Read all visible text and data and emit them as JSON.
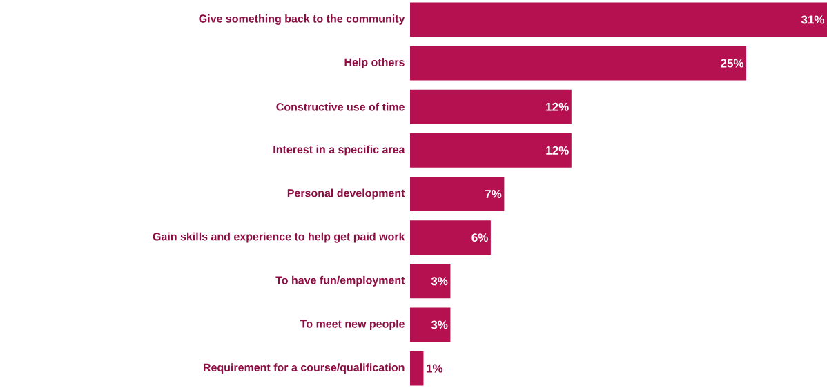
{
  "chart_data": {
    "type": "bar",
    "orientation": "horizontal",
    "categories": [
      "Give something back to the community",
      "Help others",
      "Constructive use of time",
      "Interest in a specific area",
      "Personal development",
      "Gain skills and experience to help get paid work",
      "To have fun/employment",
      "To meet new people",
      "Requirement for a course/qualification"
    ],
    "values": [
      31,
      25,
      12,
      12,
      7,
      6,
      3,
      3,
      1
    ],
    "value_labels": [
      "31%",
      "25%",
      "12%",
      "12%",
      "7%",
      "6%",
      "3%",
      "3%",
      "1%"
    ],
    "color": "#b5104f"
  }
}
